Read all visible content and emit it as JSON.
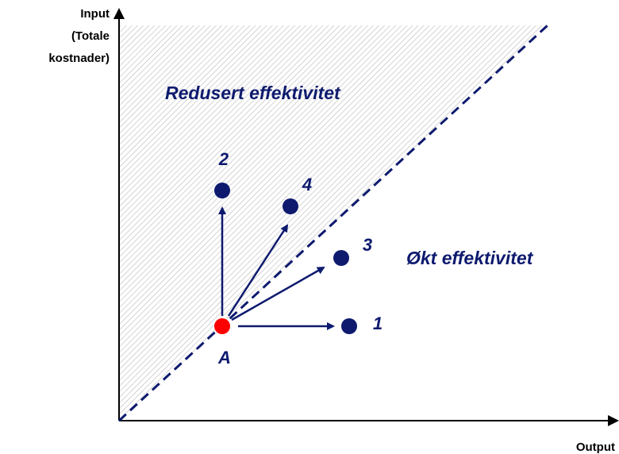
{
  "axes": {
    "y_label": [
      "Input",
      "(Totale",
      "kostnader)"
    ],
    "x_label": "Output"
  },
  "regions": [
    "Redusert effektivitet",
    "Økt effektivitet"
  ],
  "points": [
    {
      "label": "A"
    },
    {
      "label": "1"
    },
    {
      "label": "3"
    },
    {
      "label": "4"
    },
    {
      "label": "2"
    }
  ]
}
